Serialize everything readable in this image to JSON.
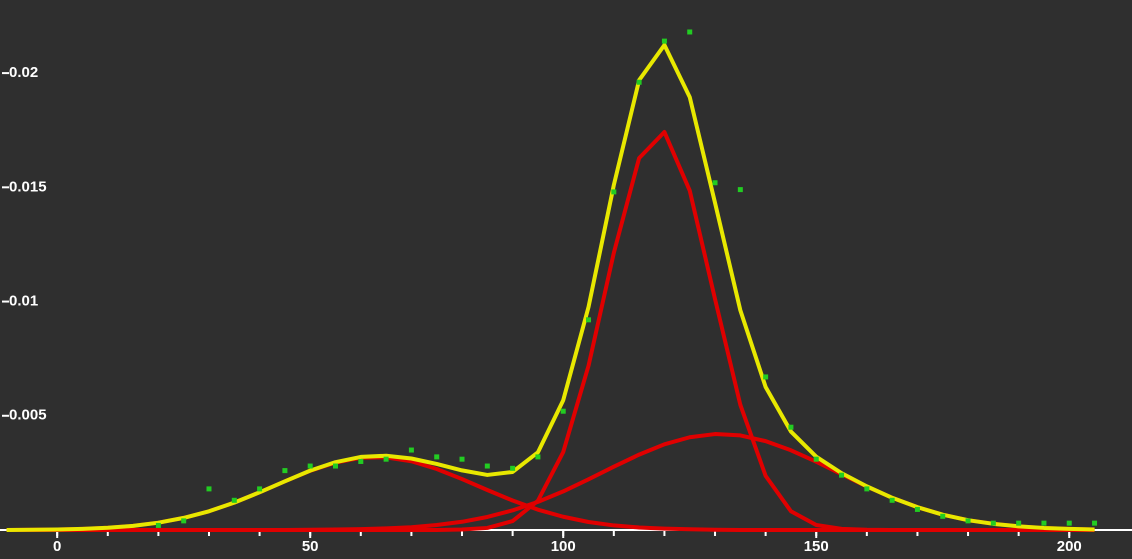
{
  "chart_data": {
    "type": "line",
    "xlim": [
      -11.3,
      212.4
    ],
    "ylim": [
      0,
      0.0232
    ],
    "xticks": [
      0,
      50,
      100,
      150,
      200
    ],
    "xminorticks": [
      0,
      10,
      20,
      30,
      40,
      50,
      60,
      70,
      80,
      90,
      100,
      110,
      120,
      130,
      140,
      150,
      160,
      170,
      180,
      190,
      200
    ],
    "yticks": [
      0.005,
      0.01,
      0.015,
      0.02
    ],
    "series": [
      {
        "type": "line",
        "color": "#e00000",
        "x": [
          -10,
          -5,
          0,
          5,
          10,
          15,
          20,
          25,
          30,
          35,
          40,
          45,
          50,
          55,
          60,
          65,
          70,
          75,
          80,
          85,
          90,
          95,
          100,
          105,
          110,
          115,
          120,
          125,
          130,
          135,
          140,
          145,
          150,
          155,
          160,
          165,
          170,
          175,
          180,
          185,
          190,
          195,
          200,
          205
        ],
        "values": [
          0,
          1e-05,
          2e-05,
          5e-05,
          0.0001,
          0.00018,
          0.00032,
          0.00053,
          0.00082,
          0.0012,
          0.00165,
          0.00213,
          0.00259,
          0.00295,
          0.00316,
          0.00318,
          0.00301,
          0.00267,
          0.00223,
          0.00175,
          0.00129,
          0.00089,
          0.00058,
          0.00035,
          0.0002,
          0.00011,
          6e-05,
          3e-05,
          1e-05,
          0,
          0,
          0,
          0,
          0,
          0,
          0,
          0,
          0,
          0,
          0,
          0,
          0,
          0,
          0
        ]
      },
      {
        "type": "line",
        "color": "#e00000",
        "x": [
          -10,
          -5,
          0,
          5,
          10,
          15,
          20,
          25,
          30,
          35,
          40,
          45,
          50,
          55,
          60,
          65,
          70,
          75,
          80,
          85,
          90,
          95,
          100,
          105,
          110,
          115,
          120,
          125,
          130,
          135,
          140,
          145,
          150,
          155,
          160,
          165,
          170,
          175,
          180,
          185,
          190,
          195,
          200,
          205
        ],
        "values": [
          0,
          0,
          0,
          0,
          0,
          0,
          0,
          0,
          0,
          0,
          0,
          0,
          0,
          0,
          0,
          0,
          0,
          0,
          2e-05,
          9e-05,
          0.00039,
          0.00128,
          0.00341,
          0.00719,
          0.01213,
          0.01628,
          0.01742,
          0.01486,
          0.01011,
          0.00548,
          0.00237,
          0.00082,
          0.00022,
          5e-05,
          1e-05,
          0,
          0,
          0,
          0,
          0,
          0,
          0,
          0,
          0
        ]
      },
      {
        "type": "line",
        "color": "#e00000",
        "x": [
          -10,
          -5,
          0,
          5,
          10,
          15,
          20,
          25,
          30,
          35,
          40,
          45,
          50,
          55,
          60,
          65,
          70,
          75,
          80,
          85,
          90,
          95,
          100,
          105,
          110,
          115,
          120,
          125,
          130,
          135,
          140,
          145,
          150,
          155,
          160,
          165,
          170,
          175,
          180,
          185,
          190,
          195,
          200,
          205
        ],
        "values": [
          0,
          0,
          0,
          0,
          0,
          0,
          0,
          0,
          0,
          0,
          0,
          0,
          1e-05,
          2e-05,
          4e-05,
          7e-05,
          0.00012,
          0.00022,
          0.00036,
          0.00057,
          0.00086,
          0.00123,
          0.00169,
          0.00222,
          0.00277,
          0.0033,
          0.00375,
          0.00406,
          0.0042,
          0.00414,
          0.00389,
          0.00349,
          0.00299,
          0.00244,
          0.0019,
          0.00141,
          0.001,
          0.00067,
          0.00043,
          0.00027,
          0.00016,
          9e-05,
          5e-05,
          2e-05
        ]
      },
      {
        "type": "line",
        "color": "#e8e800",
        "x": [
          -10,
          -5,
          0,
          5,
          10,
          15,
          20,
          25,
          30,
          35,
          40,
          45,
          50,
          55,
          60,
          65,
          70,
          75,
          80,
          85,
          90,
          95,
          100,
          105,
          110,
          115,
          120,
          125,
          130,
          135,
          140,
          145,
          150,
          155,
          160,
          165,
          170,
          175,
          180,
          185,
          190,
          195,
          200,
          205
        ],
        "values": [
          0,
          1e-05,
          2e-05,
          5e-05,
          0.0001,
          0.00018,
          0.00032,
          0.00053,
          0.00082,
          0.0012,
          0.00165,
          0.00213,
          0.0026,
          0.00297,
          0.0032,
          0.00325,
          0.00313,
          0.00289,
          0.00261,
          0.00241,
          0.00254,
          0.0034,
          0.00568,
          0.00976,
          0.0151,
          0.01969,
          0.02123,
          0.01895,
          0.01432,
          0.00962,
          0.00626,
          0.00431,
          0.00321,
          0.00249,
          0.00191,
          0.00141,
          0.001,
          0.00067,
          0.00043,
          0.00027,
          0.00016,
          9e-05,
          5e-05,
          2e-05
        ]
      },
      {
        "type": "scatter",
        "color": "#22cc22",
        "x": [
          20,
          25,
          30,
          35,
          40,
          45,
          50,
          55,
          60,
          65,
          70,
          75,
          80,
          85,
          90,
          95,
          100,
          105,
          110,
          115,
          120,
          125,
          130,
          135,
          140,
          145,
          150,
          155,
          160,
          165,
          170,
          175,
          180,
          185,
          190,
          195,
          200,
          205
        ],
        "values": [
          0.0002,
          0.0004,
          0.0018,
          0.0013,
          0.0018,
          0.0026,
          0.0028,
          0.0028,
          0.003,
          0.0031,
          0.0035,
          0.0032,
          0.0031,
          0.0028,
          0.0027,
          0.0032,
          0.0052,
          0.0092,
          0.0148,
          0.0196,
          0.0214,
          0.0218,
          0.0152,
          0.0149,
          0.0067,
          0.0045,
          0.0031,
          0.0024,
          0.0018,
          0.0013,
          0.0009,
          0.0006,
          0.0004,
          0.0003,
          0.0003,
          0.0003,
          0.0003,
          0.0003
        ]
      }
    ]
  }
}
